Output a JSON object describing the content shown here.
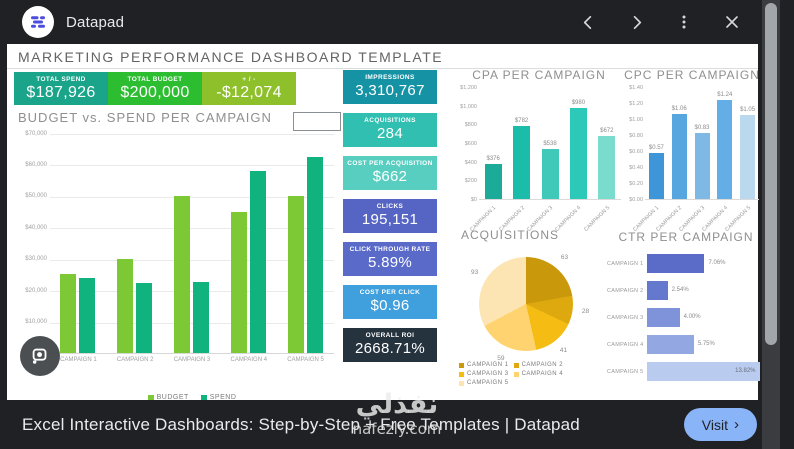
{
  "viewer": {
    "app_title": "Datapad",
    "icons": {
      "back": "chevron-left",
      "forward": "chevron-right",
      "more": "three-dot-menu",
      "close": "close",
      "lens": "camera-lens"
    },
    "page_link_text": "Excel Interactive Dashboards: Step-by-Step + Free Templates | Datapad",
    "visit_label": "Visit",
    "visit_button_color": "#8ab4f8"
  },
  "watermark": {
    "title": "نفذلي",
    "site": "nafezly.com"
  },
  "dashboard": {
    "title": "MARKETING PERFORMANCE DASHBOARD TEMPLATE",
    "kpis_top": [
      {
        "label": "TOTAL SPEND",
        "value": "$187,926",
        "color": "#1aa489"
      },
      {
        "label": "TOTAL BUDGET",
        "value": "$200,000",
        "color": "#2cbe30"
      },
      {
        "label": "+ / -",
        "value": "-$12,074",
        "color": "#8ec02b"
      }
    ],
    "kpis_mid": [
      {
        "label": "IMPRESSIONS",
        "value": "3,310,767",
        "color": "#1692a5"
      },
      {
        "label": "ACQUISITIONS",
        "value": "284",
        "color": "#30bfb0"
      },
      {
        "label": "COST PER ACQUISITION",
        "value": "$662",
        "color": "#58cec1"
      },
      {
        "label": "CLICKS",
        "value": "195,151",
        "color": "#5665c3"
      },
      {
        "label": "CLICK THROUGH RATE",
        "value": "5.89%",
        "color": "#5a6ac9"
      },
      {
        "label": "COST PER CLICK",
        "value": "$0.96",
        "color": "#3fa0dd"
      },
      {
        "label": "OVERALL ROI",
        "value": "2668.71%",
        "color": "#25333f"
      }
    ]
  },
  "chart_data": [
    {
      "type": "bar",
      "title": "BUDGET vs. SPEND PER CAMPAIGN",
      "categories": [
        "CAMPAIGN 1",
        "CAMPAIGN 2",
        "CAMPAIGN 3",
        "CAMPAIGN 4",
        "CAMPAIGN 5"
      ],
      "series": [
        {
          "name": "BUDGET",
          "color": "#7cc835",
          "values": [
            25000,
            30000,
            50000,
            45000,
            50000
          ]
        },
        {
          "name": "SPEND",
          "color": "#10b37d",
          "values": [
            23800,
            22200,
            22500,
            58000,
            62500
          ]
        }
      ],
      "ylim": [
        0,
        70000
      ],
      "yticks": [
        {
          "value": 10000,
          "label": "$10,000"
        },
        {
          "value": 20000,
          "label": "$20,000"
        },
        {
          "value": 30000,
          "label": "$30,000"
        },
        {
          "value": 40000,
          "label": "$40,000"
        },
        {
          "value": 50000,
          "label": "$50,000"
        },
        {
          "value": 60000,
          "label": "$60,000"
        },
        {
          "value": 70000,
          "label": "$70,000"
        }
      ],
      "grid": true,
      "legend_position": "bottom"
    },
    {
      "type": "bar",
      "title": "CPA PER CAMPAIGN",
      "categories": [
        "CAMPAIGN 1",
        "CAMPAIGN 2",
        "CAMPAIGN 3",
        "CAMPAIGN 4",
        "CAMPAIGN 5"
      ],
      "values": [
        376,
        782,
        538,
        980,
        672
      ],
      "labels": [
        "$376",
        "$782",
        "$538",
        "$980",
        "$672"
      ],
      "colors": [
        "#1dab99",
        "#1cbcab",
        "#40c9b8",
        "#2cc9b9",
        "#79dccd"
      ],
      "ylim": [
        0,
        1200
      ],
      "ytick_labels": [
        "$0",
        "$200",
        "$400",
        "$600",
        "$800",
        "$1,000",
        "$1,200"
      ],
      "grid": false,
      "legend_position": "none"
    },
    {
      "type": "bar",
      "title": "CPC PER CAMPAIGN",
      "categories": [
        "CAMPAIGN 1",
        "CAMPAIGN 2",
        "CAMPAIGN 3",
        "CAMPAIGN 4",
        "CAMPAIGN 5"
      ],
      "values": [
        0.57,
        1.06,
        0.83,
        1.24,
        1.05
      ],
      "labels": [
        "$0.57",
        "$1.06",
        "$0.83",
        "$1.24",
        "$1.05"
      ],
      "colors": [
        "#3e95d8",
        "#57a6df",
        "#7db9e4",
        "#63aee6",
        "#bad9ef"
      ],
      "ylim": [
        0,
        1.4
      ],
      "ytick_labels": [
        "$0.00",
        "$0.20",
        "$0.40",
        "$0.60",
        "$0.80",
        "$1.00",
        "$1.20",
        "$1.40"
      ],
      "grid": false,
      "legend_position": "none"
    },
    {
      "type": "pie",
      "title": "ACQUISITIONS",
      "labels": [
        "CAMPAIGN 1",
        "CAMPAIGN 2",
        "CAMPAIGN 3",
        "CAMPAIGN 4",
        "CAMPAIGN 5"
      ],
      "values": [
        63,
        28,
        41,
        59,
        93
      ],
      "colors": [
        "#c9990b",
        "#dda90f",
        "#f5bc13",
        "#ffd470",
        "#fde5b3"
      ],
      "legend_position": "bottom"
    },
    {
      "type": "bar-horizontal",
      "title": "CTR PER CAMPAIGN",
      "categories": [
        "CAMPAIGN 1",
        "CAMPAIGN 2",
        "CAMPAIGN 3",
        "CAMPAIGN 4",
        "CAMPAIGN 5"
      ],
      "values": [
        7.06,
        2.54,
        4.0,
        5.75,
        13.82
      ],
      "labels": [
        "7.06%",
        "2.54%",
        "4.00%",
        "5.75%",
        "13.82%"
      ],
      "colors": [
        "#5b6bc8",
        "#6478ce",
        "#7f93da",
        "#93a7e2",
        "#b9cbef"
      ],
      "xmax": 14,
      "legend_position": "none"
    }
  ]
}
